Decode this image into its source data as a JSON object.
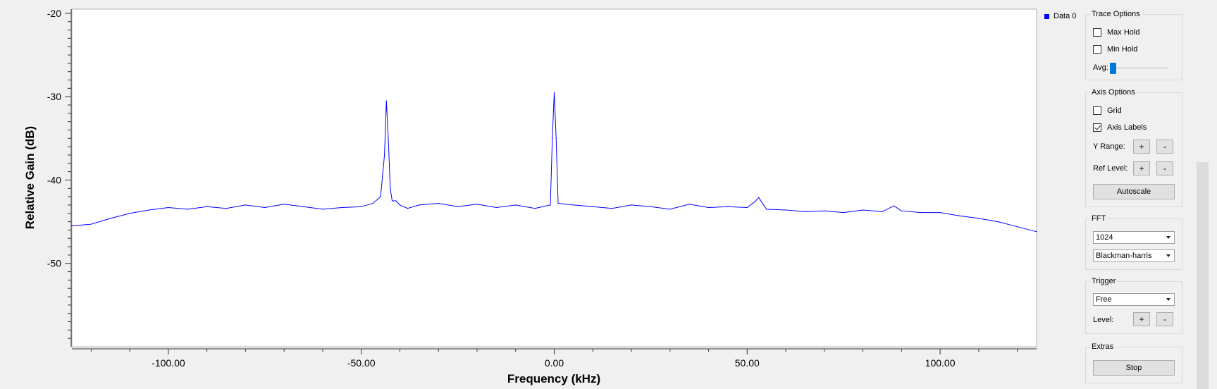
{
  "legend": {
    "label": "Data 0",
    "color": "#0000ff"
  },
  "trace_options": {
    "title": "Trace Options",
    "max_hold": {
      "label": "Max Hold",
      "checked": false
    },
    "min_hold": {
      "label": "Min Hold",
      "checked": false
    },
    "avg_label": "Avg:",
    "avg_value": 0
  },
  "axis_options": {
    "title": "Axis Options",
    "grid": {
      "label": "Grid",
      "checked": false
    },
    "axis_labels": {
      "label": "Axis Labels",
      "checked": true
    },
    "y_range_label": "Y Range:",
    "ref_level_label": "Ref Level:",
    "plus": "+",
    "minus": "-",
    "autoscale_label": "Autoscale"
  },
  "fft": {
    "title": "FFT",
    "size": "1024",
    "window": "Blackman-harris"
  },
  "trigger": {
    "title": "Trigger",
    "mode": "Free",
    "level_label": "Level:",
    "plus": "+",
    "minus": "-"
  },
  "extras": {
    "title": "Extras",
    "stop_label": "Stop"
  },
  "chart_data": {
    "type": "line",
    "xlabel": "Frequency (kHz)",
    "ylabel": "Relative Gain (dB)",
    "xlim": [
      -125,
      125
    ],
    "ylim": [
      -60,
      -19.5
    ],
    "xticks": [
      "-100.00",
      "-50.00",
      "0.00",
      "50.00",
      "100.00"
    ],
    "xtick_values": [
      -100,
      -50,
      0,
      50,
      100
    ],
    "yticks": [
      "-20",
      "-30",
      "-40",
      "-50"
    ],
    "ytick_values": [
      -20,
      -30,
      -40,
      -50
    ],
    "grid": false,
    "legend_position": "top-right",
    "series": [
      {
        "name": "Data 0",
        "color": "#0000ff",
        "x": [
          -125,
          -120,
          -115,
          -110,
          -105,
          -100,
          -95,
          -90,
          -85,
          -80,
          -75,
          -70,
          -65,
          -60,
          -55,
          -50,
          -47,
          -45,
          -44,
          -43.5,
          -43,
          -42.5,
          -42,
          -41,
          -40,
          -38,
          -35,
          -30,
          -25,
          -20,
          -15,
          -10,
          -5,
          -1,
          -0.5,
          0,
          0.5,
          1,
          5,
          10,
          15,
          20,
          25,
          30,
          35,
          40,
          45,
          50,
          52,
          53,
          55,
          60,
          65,
          70,
          75,
          80,
          85,
          88,
          90,
          95,
          100,
          105,
          110,
          115,
          120,
          125
        ],
        "y": [
          -45.5,
          -45.3,
          -44.6,
          -44.0,
          -43.6,
          -43.3,
          -43.5,
          -43.2,
          -43.4,
          -43.0,
          -43.3,
          -42.9,
          -43.2,
          -43.5,
          -43.3,
          -43.2,
          -42.8,
          -42.0,
          -37.0,
          -30.5,
          -35.0,
          -41.0,
          -42.5,
          -42.5,
          -43.0,
          -43.4,
          -43.0,
          -42.8,
          -43.2,
          -42.9,
          -43.3,
          -43.0,
          -43.4,
          -43.0,
          -35.0,
          -29.5,
          -35.0,
          -42.8,
          -43.0,
          -43.2,
          -43.4,
          -43.0,
          -43.2,
          -43.5,
          -42.9,
          -43.3,
          -43.2,
          -43.3,
          -42.6,
          -42.1,
          -43.5,
          -43.6,
          -43.8,
          -43.7,
          -43.9,
          -43.6,
          -43.8,
          -43.1,
          -43.7,
          -43.9,
          -43.9,
          -44.3,
          -44.6,
          -45.0,
          -45.6,
          -46.2
        ]
      }
    ]
  }
}
